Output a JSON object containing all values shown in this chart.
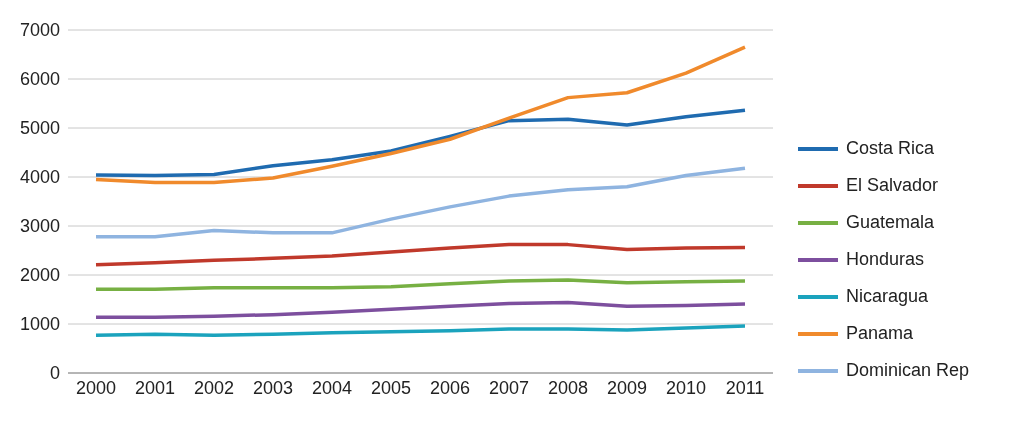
{
  "chart_data": {
    "type": "line",
    "categories": [
      "2000",
      "2001",
      "2002",
      "2003",
      "2004",
      "2005",
      "2006",
      "2007",
      "2008",
      "2009",
      "2010",
      "2011"
    ],
    "series": [
      {
        "name": "Costa Rica",
        "color": "#1f6bb0",
        "values": [
          4040,
          4030,
          4050,
          4230,
          4350,
          4530,
          4830,
          5150,
          5180,
          5060,
          5230,
          5360
        ]
      },
      {
        "name": "El Salvador",
        "color": "#c0392b",
        "values": [
          2210,
          2250,
          2300,
          2340,
          2390,
          2470,
          2550,
          2620,
          2620,
          2520,
          2550,
          2560
        ]
      },
      {
        "name": "Guatemala",
        "color": "#77b043",
        "values": [
          1710,
          1710,
          1740,
          1740,
          1740,
          1760,
          1820,
          1880,
          1900,
          1840,
          1860,
          1880
        ]
      },
      {
        "name": "Honduras",
        "color": "#7d4f9e",
        "values": [
          1140,
          1140,
          1160,
          1190,
          1240,
          1300,
          1360,
          1420,
          1440,
          1360,
          1380,
          1410
        ]
      },
      {
        "name": "Nicaragua",
        "color": "#1ba3bd",
        "values": [
          770,
          790,
          770,
          790,
          820,
          840,
          860,
          900,
          900,
          880,
          920,
          960
        ]
      },
      {
        "name": "Panama",
        "color": "#f08a2c",
        "values": [
          3950,
          3890,
          3890,
          3980,
          4220,
          4480,
          4770,
          5200,
          5620,
          5720,
          6120,
          6650
        ]
      },
      {
        "name": "Dominican Rep",
        "color": "#8fb4e0",
        "values": [
          2780,
          2780,
          2910,
          2860,
          2860,
          3140,
          3390,
          3610,
          3740,
          3800,
          4030,
          4180
        ]
      }
    ],
    "ylim": [
      0,
      7000
    ],
    "yticks": [
      0,
      1000,
      2000,
      3000,
      4000,
      5000,
      6000,
      7000
    ],
    "grid": "y",
    "legend": "right",
    "marker": "none",
    "line_style": "solid"
  }
}
